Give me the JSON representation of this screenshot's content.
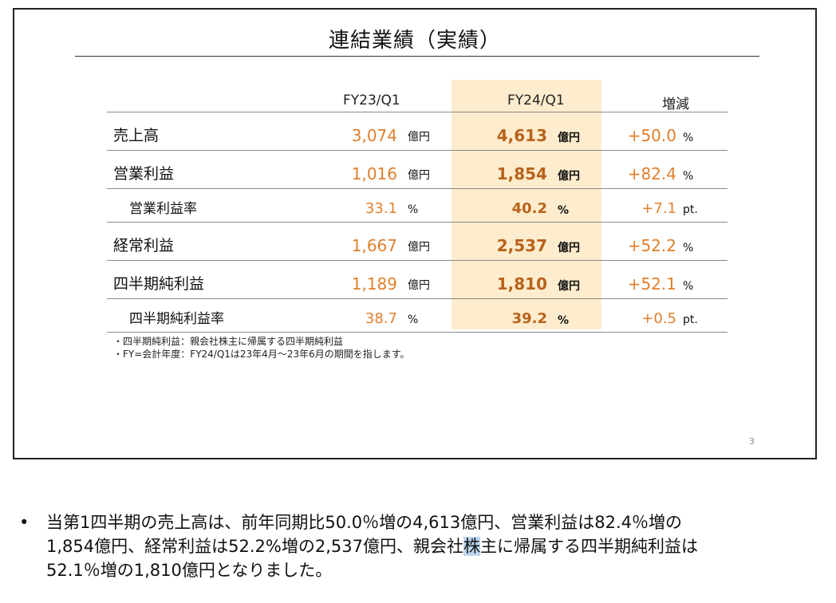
{
  "slide": {
    "title": "連結業績（実績）",
    "page_number": "3",
    "headers": {
      "fy23": "FY23/Q1",
      "fy24": "FY24/Q1",
      "change": "増減"
    },
    "rows": [
      {
        "label": "売上高",
        "fy23": "3,074",
        "fy23_unit": "億円",
        "fy24": "4,613",
        "fy24_unit": "億円",
        "change": "+50.0",
        "change_unit": "%",
        "sub": false
      },
      {
        "label": "営業利益",
        "fy23": "1,016",
        "fy23_unit": "億円",
        "fy24": "1,854",
        "fy24_unit": "億円",
        "change": "+82.4",
        "change_unit": "%",
        "sub": false
      },
      {
        "label": "営業利益率",
        "fy23": "33.1",
        "fy23_unit": "%",
        "fy24": "40.2",
        "fy24_unit": "%",
        "change": "+7.1",
        "change_unit": "pt.",
        "sub": true
      },
      {
        "label": "経常利益",
        "fy23": "1,667",
        "fy23_unit": "億円",
        "fy24": "2,537",
        "fy24_unit": "億円",
        "change": "+52.2",
        "change_unit": "%",
        "sub": false
      },
      {
        "label": "四半期純利益",
        "fy23": "1,189",
        "fy23_unit": "億円",
        "fy24": "1,810",
        "fy24_unit": "億円",
        "change": "+52.1",
        "change_unit": "%",
        "sub": false
      },
      {
        "label": "四半期純利益率",
        "fy23": "38.7",
        "fy23_unit": "%",
        "fy24": "39.2",
        "fy24_unit": "%",
        "change": "+0.5",
        "change_unit": "pt.",
        "sub": true
      }
    ],
    "notes": [
      "・四半期純利益：親会社株主に帰属する四半期純利益",
      "・FY=会計年度：FY24/Q1は23年4月～23年6月の期間を指します。"
    ]
  },
  "caption": {
    "bullet": "•",
    "line1": "当第1四半期の売上高は、前年同期比50.0％増の4,613億円、営業利益は82.4％増の",
    "line2_before": "1,854億円、経常利益は52.2%増の2,537億円、親会社",
    "line2_selected": "株",
    "line2_after": "主に帰属する四半期純利益は",
    "line3": "52.1％増の1,810億円となりました。"
  },
  "colors": {
    "highlight_column": "#fdeccd",
    "value_orange": "#e07f2c",
    "value_dark_orange": "#b8621a",
    "text_selection": "#bcd6ee"
  }
}
